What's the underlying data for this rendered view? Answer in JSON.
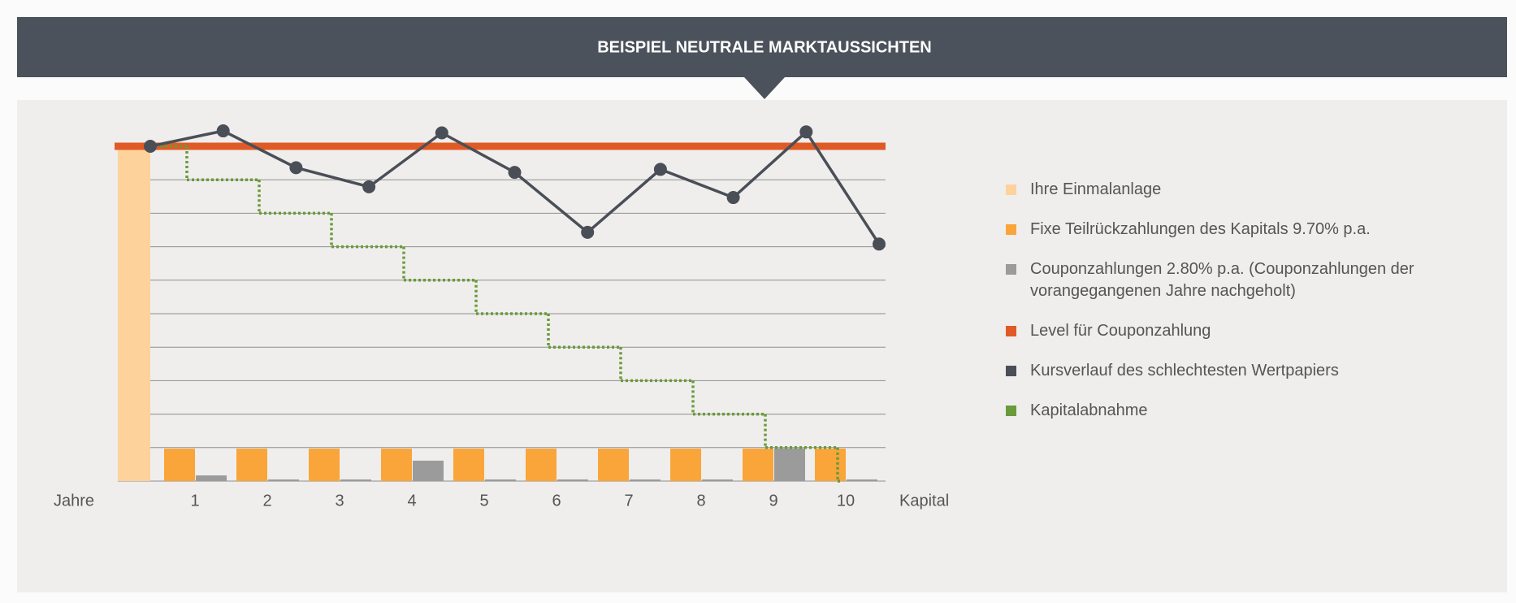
{
  "chart_data": {
    "type": "bar",
    "title": "BEISPIEL NEUTRALE MARKTAUSSICHTEN",
    "x_label_left": "Jahre",
    "x_label_right": "Kapital",
    "categories": [
      "1",
      "2",
      "3",
      "4",
      "5",
      "6",
      "7",
      "8",
      "9",
      "10"
    ],
    "ylim": [
      0,
      100
    ],
    "yticks": [
      0,
      10,
      20,
      30,
      40,
      50,
      60,
      70,
      80,
      90,
      100
    ],
    "xlim": [
      0,
      10
    ],
    "grid": true,
    "series": [
      {
        "name": "Ihre Einmalanlage",
        "color": "#fdd29b",
        "type": "initial",
        "value": 100
      },
      {
        "name": "Fixe Teilrückzahlungen des Kapitals 9.70% p.a.",
        "color": "#f9a53a",
        "type": "bar",
        "values": [
          9.7,
          9.7,
          9.7,
          9.7,
          9.7,
          9.7,
          9.7,
          9.7,
          9.7,
          9.7
        ]
      },
      {
        "name": "Couponzahlungen 2.80% p.a. (Couponzahlungen der vorangegangenen Jahre nachgeholt)",
        "color": "#9b9b9b",
        "type": "bar",
        "values": [
          1.7,
          0.5,
          0.5,
          6.1,
          0.5,
          0.5,
          0.5,
          0.5,
          9.8,
          0.5
        ]
      },
      {
        "name": "Level für Couponzahlung",
        "color": "#e05a26",
        "type": "level",
        "value": 100
      },
      {
        "name": "Kursverlauf des schlechtesten Wertpapiers",
        "color": "#4a4f57",
        "type": "line",
        "x": [
          0,
          1,
          2,
          3,
          4,
          5,
          6,
          7,
          8,
          9,
          10
        ],
        "values": [
          100,
          104.6,
          93.6,
          87.9,
          104,
          92.2,
          74.3,
          93.1,
          84.7,
          104.3,
          70.8
        ]
      },
      {
        "name": "Kapitalabnahme",
        "color": "#6a9a3a",
        "type": "step",
        "x": [
          0,
          1,
          2,
          3,
          4,
          5,
          6,
          7,
          8,
          9,
          10
        ],
        "values": [
          100,
          90,
          80,
          70,
          60,
          50,
          40,
          30,
          20,
          10,
          0
        ]
      }
    ]
  }
}
